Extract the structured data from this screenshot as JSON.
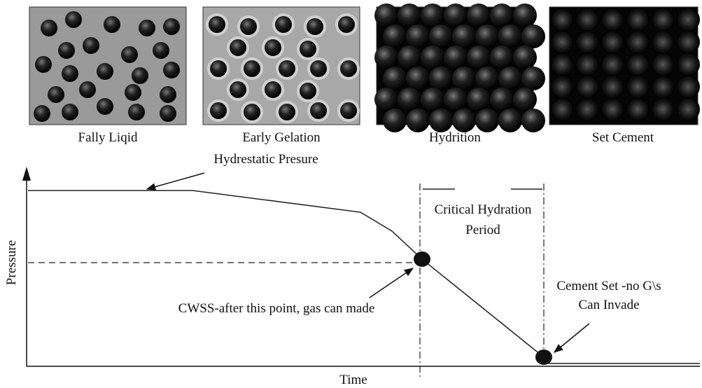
{
  "panels": [
    {
      "label": "Fally Liqid"
    },
    {
      "label": "Early Gelation"
    },
    {
      "label": "Hydrition"
    },
    {
      "label": "Set Cement"
    }
  ],
  "axes": {
    "y_label": "Pressure",
    "x_label": "Time"
  },
  "annotations": {
    "hydrostatic": "Hydrestatic Presure",
    "critical_line1": "Critical Hydration",
    "critical_line2": "Period",
    "cwss": "CWSS-after this point, gas can made",
    "cement_set_line1": "Cement Set -no G\\s",
    "cement_set_line2": "Can Invade"
  }
}
